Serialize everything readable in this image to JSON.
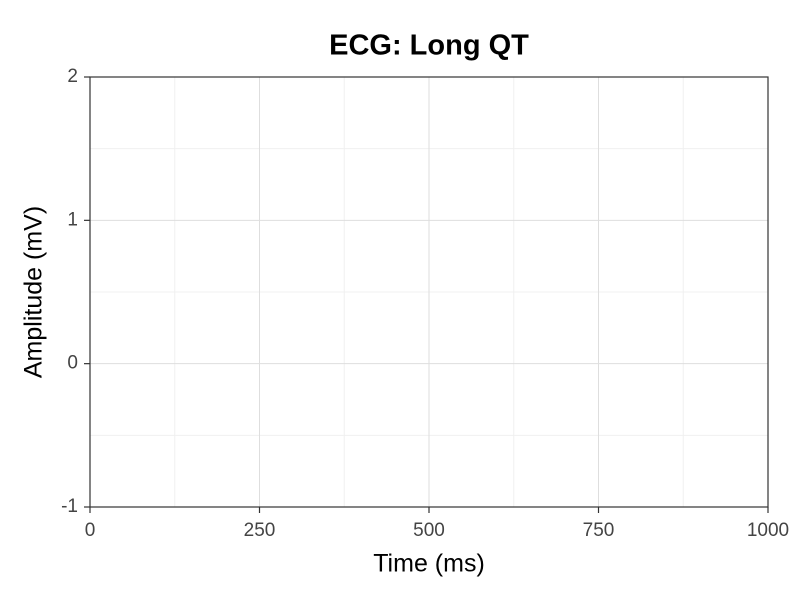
{
  "chart_data": {
    "type": "line",
    "title": "ECG: Long QT",
    "x_label": "Time (ms)",
    "y_label": "Amplitude (mV)",
    "xlim": [
      0,
      1000
    ],
    "xticks": [
      0,
      250,
      500,
      750,
      1000
    ],
    "ylim": [
      -1,
      2
    ],
    "yticks": [
      -1,
      0,
      1,
      2
    ],
    "grid": true,
    "minor_grid": true
  }
}
